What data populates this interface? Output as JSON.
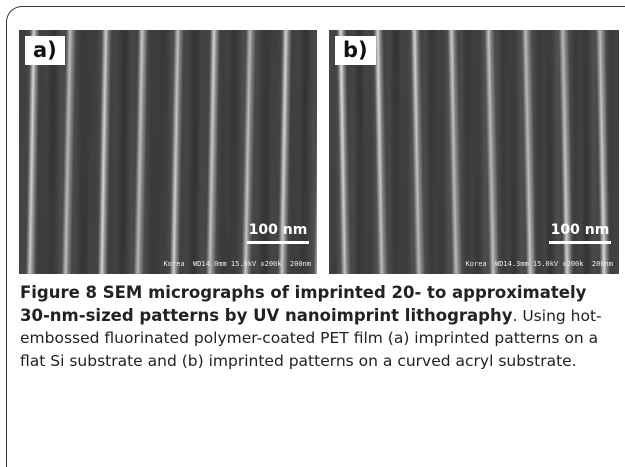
{
  "figure": {
    "panels": [
      {
        "label": "a)",
        "scale_bar": "100 nm",
        "info": "Korea  WD14.0mm 15.0kV x200k  200nm"
      },
      {
        "label": "b)",
        "scale_bar": "100 nm",
        "info": "Korea  WD14.3mm 15.0kV x200k  200nm"
      }
    ],
    "caption": {
      "title": "Figure 8 SEM micrographs of imprinted 20- to approximately 30-nm-sized patterns by UV nanoimprint lithography",
      "text": ". Using hot-embossed fluorinated polymer-coated PET film (a) imprinted patterns on a flat Si substrate and (b) imprinted patterns on a curved acryl substrate."
    }
  }
}
